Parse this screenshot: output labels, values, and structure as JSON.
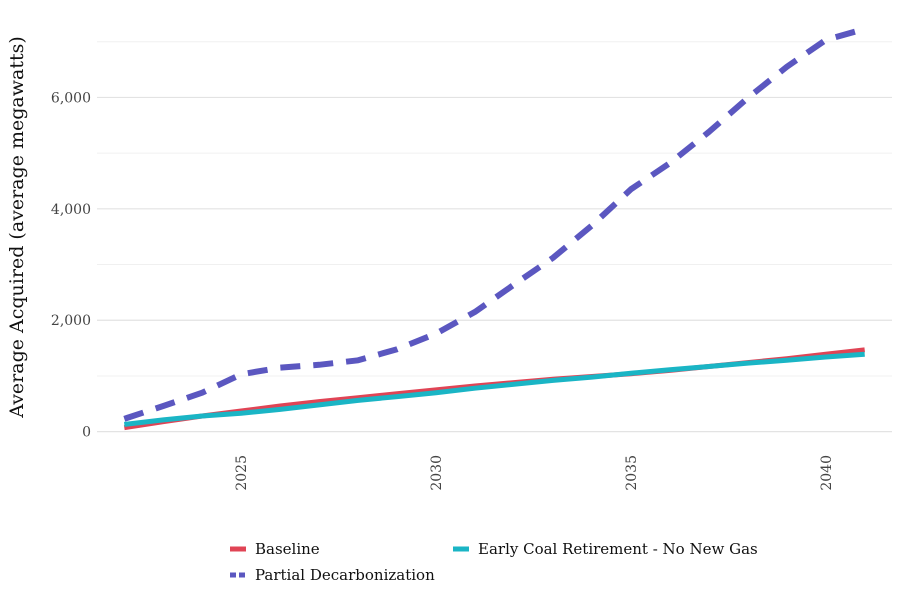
{
  "chart_data": {
    "type": "line",
    "title": "",
    "xlabel": "",
    "ylabel": "Average Acquired (average megawatts)",
    "xlim": [
      2021.3,
      2041.7
    ],
    "ylim": [
      -150,
      7300
    ],
    "x_ticks": [
      2025,
      2030,
      2035,
      2040
    ],
    "x_tick_labels": [
      "2025",
      "2030",
      "2035",
      "2040"
    ],
    "y_ticks": [
      0,
      2000,
      4000,
      6000
    ],
    "y_tick_labels": [
      "0",
      "2,000",
      "4,000",
      "6,000"
    ],
    "y_minor_gridlines": [
      1000,
      3000,
      5000,
      7000
    ],
    "grid": true,
    "legend_position": "bottom",
    "x": [
      2022,
      2023,
      2024,
      2025,
      2026,
      2027,
      2028,
      2029,
      2030,
      2031,
      2032,
      2033,
      2034,
      2035,
      2036,
      2037,
      2038,
      2039,
      2040,
      2041
    ],
    "series": [
      {
        "name": "Baseline",
        "color": "#e04455",
        "style": "solid",
        "values": [
          70,
          180,
          280,
          370,
          460,
          540,
          610,
          680,
          750,
          820,
          880,
          940,
          990,
          1040,
          1100,
          1170,
          1240,
          1310,
          1390,
          1470
        ]
      },
      {
        "name": "Partial Decarbonization",
        "color": "#5b57c0",
        "style": "dashed",
        "values": [
          230,
          460,
          700,
          1030,
          1150,
          1200,
          1280,
          1480,
          1760,
          2150,
          2640,
          3120,
          3700,
          4350,
          4820,
          5380,
          5990,
          6550,
          7030,
          7230
        ]
      },
      {
        "name": "Early Coal Retirement - No New Gas",
        "color": "#1ab5c5",
        "style": "solid",
        "values": [
          130,
          210,
          280,
          330,
          400,
          480,
          560,
          630,
          700,
          780,
          850,
          920,
          980,
          1050,
          1110,
          1170,
          1230,
          1280,
          1340,
          1390
        ]
      }
    ]
  }
}
